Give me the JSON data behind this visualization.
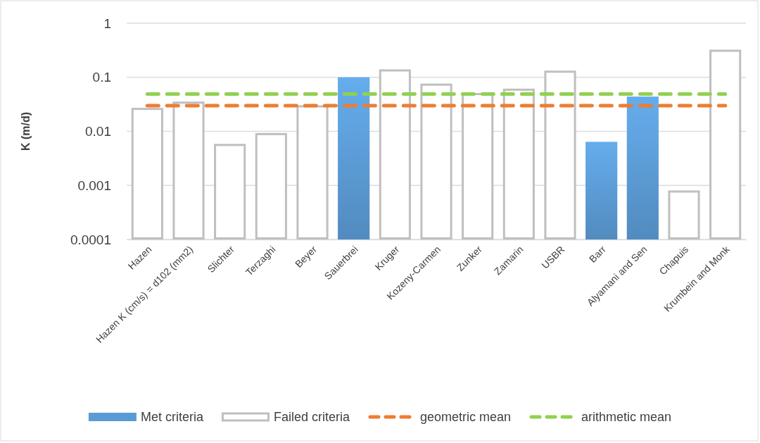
{
  "chart_data": {
    "type": "bar",
    "ylabel": "K (m/d)",
    "log": true,
    "ylim": [
      0.0001,
      1
    ],
    "yticks": [
      0.0001,
      0.001,
      0.01,
      0.1,
      1
    ],
    "grid": "y",
    "legend": "bottom",
    "categories": [
      "Hazen",
      "Hazen K (cm/s) = d102 (mm2)",
      "Slichter",
      "Terzaghi",
      "Beyer",
      "Sauerbrei",
      "Kruger",
      "Kozeny-Carmen",
      "Zunker",
      "Zamarin",
      "USBR",
      "Barr",
      "Alyamani and Sen",
      "Chapuis",
      "Krumbein and Monk"
    ],
    "series": [
      {
        "name": "Met criteria",
        "color": "#5b9bd5",
        "values": [
          null,
          null,
          null,
          null,
          null,
          0.1,
          null,
          null,
          null,
          null,
          null,
          0.0064,
          0.044,
          null,
          null
        ]
      },
      {
        "name": "Failed criteria",
        "color": "#bfbfbf",
        "values": [
          0.026,
          0.034,
          0.0056,
          0.0089,
          0.029,
          null,
          0.134,
          0.073,
          0.049,
          0.059,
          0.127,
          null,
          null,
          0.00077,
          0.31
        ]
      },
      {
        "name": "geometric mean",
        "type": "line",
        "line_style": "dashed",
        "color": "#ed7d31",
        "values": [
          0.03,
          0.03,
          0.03,
          0.03,
          0.03,
          0.03,
          0.03,
          0.03,
          0.03,
          0.03,
          0.03,
          0.03,
          0.03,
          0.03,
          0.03
        ]
      },
      {
        "name": "arithmetic mean",
        "type": "line",
        "line_style": "dashed",
        "color": "#92d050",
        "values": [
          0.049,
          0.049,
          0.049,
          0.049,
          0.049,
          0.049,
          0.049,
          0.049,
          0.049,
          0.049,
          0.049,
          0.049,
          0.049,
          0.049,
          0.049
        ]
      }
    ]
  }
}
